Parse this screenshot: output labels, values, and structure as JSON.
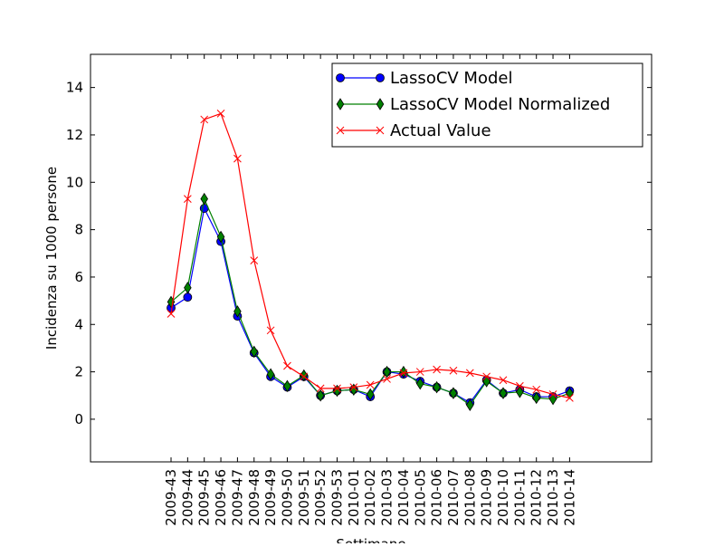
{
  "chart_data": {
    "type": "line",
    "xlabel": "Settimane",
    "ylabel": "Incidenza su 1000 persone",
    "ylim": [
      -1.8,
      15.4
    ],
    "yticks": [
      0,
      2,
      4,
      6,
      8,
      10,
      12,
      14
    ],
    "legend_position": "top-right",
    "categories": [
      "2009-43",
      "2009-44",
      "2009-45",
      "2009-46",
      "2009-47",
      "2009-48",
      "2009-49",
      "2009-50",
      "2009-51",
      "2009-52",
      "2009-53",
      "2010-01",
      "2010-02",
      "2010-03",
      "2010-04",
      "2010-05",
      "2010-06",
      "2010-07",
      "2010-08",
      "2010-09",
      "2010-10",
      "2010-11",
      "2010-12",
      "2010-13",
      "2010-14"
    ],
    "series": [
      {
        "name": "LassoCV Model",
        "color": "#0000ff",
        "marker": "circle",
        "values": [
          4.7,
          5.15,
          8.9,
          7.5,
          4.35,
          2.8,
          1.8,
          1.35,
          1.8,
          1.0,
          1.2,
          1.25,
          0.95,
          2.0,
          1.9,
          1.6,
          1.35,
          1.1,
          0.7,
          1.65,
          1.1,
          1.25,
          0.95,
          0.95,
          1.2
        ]
      },
      {
        "name": "LassoCV Model Normalized",
        "color": "#008000",
        "marker": "diamond",
        "values": [
          4.95,
          5.55,
          9.3,
          7.7,
          4.55,
          2.85,
          1.9,
          1.4,
          1.85,
          1.0,
          1.2,
          1.25,
          1.05,
          2.0,
          2.0,
          1.5,
          1.35,
          1.1,
          0.6,
          1.6,
          1.1,
          1.15,
          0.9,
          0.85,
          1.1
        ]
      },
      {
        "name": "Actual Value",
        "color": "#ff0000",
        "marker": "x",
        "values": [
          4.45,
          9.3,
          12.65,
          12.9,
          11.0,
          6.7,
          3.75,
          2.25,
          1.8,
          1.3,
          1.3,
          1.35,
          1.45,
          1.7,
          1.95,
          2.0,
          2.1,
          2.05,
          1.95,
          1.8,
          1.65,
          1.4,
          1.25,
          1.05,
          0.9
        ]
      }
    ]
  }
}
